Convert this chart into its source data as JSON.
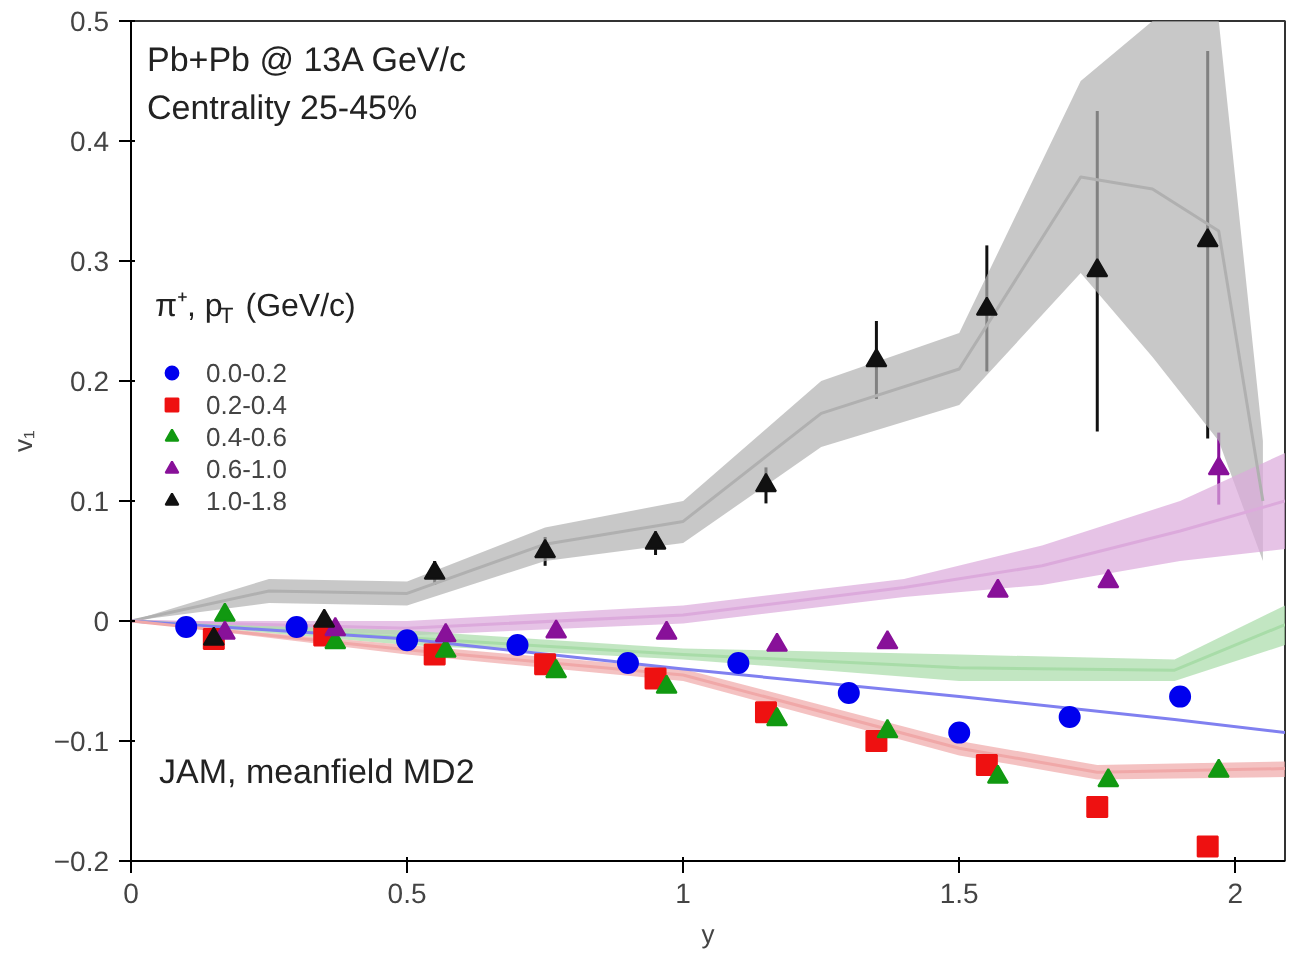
{
  "chart_data": {
    "type": "scatter",
    "xlabel": "y",
    "ylabel": "v₁",
    "legend_title": "π⁺, p$_{T}$ (GeV/c)",
    "annotations": [
      "Pb+Pb @ 13A GeV/c",
      "Centrality 25-45%",
      "JAM, meanfield MD2"
    ],
    "xlim": [
      0,
      2.09
    ],
    "ylim": [
      -0.2,
      0.5
    ],
    "xticks": [
      0,
      0.5,
      1,
      1.5,
      2
    ],
    "yticks": [
      -0.2,
      -0.1,
      0,
      0.1,
      0.2,
      0.3,
      0.4,
      0.5
    ],
    "grid": false,
    "legend": "top left",
    "series": [
      {
        "type": "line",
        "color": "#b0b0b0",
        "x": [
          0,
          0.25,
          0.5,
          0.75,
          1.0,
          1.25,
          1.5,
          1.72,
          1.85,
          1.97,
          2.05
        ],
        "values": [
          0,
          0.025,
          0.023,
          0.064,
          0.083,
          0.173,
          0.21,
          0.37,
          0.36,
          0.325,
          0.1
        ],
        "lower": [
          0,
          0.015,
          0.013,
          0.05,
          0.065,
          0.145,
          0.18,
          0.29,
          0.22,
          0.15,
          0.05
        ],
        "upper": [
          0,
          0.035,
          0.033,
          0.078,
          0.1,
          0.2,
          0.24,
          0.45,
          0.5,
          0.5,
          0.15
        ]
      },
      {
        "type": "line",
        "color": "#dcaadc",
        "x": [
          0,
          0.5,
          1.0,
          1.4,
          1.65,
          1.9,
          2.09
        ],
        "values": [
          0,
          -0.006,
          0.005,
          0.028,
          0.046,
          0.075,
          0.1
        ],
        "lower": [
          0,
          -0.012,
          -0.002,
          0.02,
          0.03,
          0.05,
          0.06
        ],
        "upper": [
          0,
          0.0,
          0.013,
          0.035,
          0.063,
          0.1,
          0.14
        ]
      },
      {
        "type": "line",
        "color": "#a8dca8",
        "x": [
          0,
          0.5,
          1.0,
          1.5,
          1.89,
          2.09
        ],
        "values": [
          0,
          -0.014,
          -0.028,
          -0.039,
          -0.041,
          -0.003
        ],
        "lower": [
          0,
          -0.02,
          -0.032,
          -0.05,
          -0.05,
          -0.02
        ],
        "upper": [
          0,
          -0.008,
          -0.023,
          -0.028,
          -0.032,
          0.013
        ]
      },
      {
        "type": "line",
        "color": "#8080f0",
        "x": [
          0,
          0.5,
          1.0,
          1.5,
          1.89,
          2.09
        ],
        "values": [
          0,
          -0.015,
          -0.04,
          -0.063,
          -0.082,
          -0.093
        ]
      },
      {
        "type": "line",
        "color": "#f0a8a8",
        "x": [
          0,
          0.5,
          1.0,
          1.5,
          1.75,
          2.09
        ],
        "values": [
          0,
          -0.024,
          -0.045,
          -0.106,
          -0.126,
          -0.123
        ],
        "lower": [
          0,
          -0.028,
          -0.05,
          -0.112,
          -0.132,
          -0.13
        ],
        "upper": [
          0,
          -0.02,
          -0.04,
          -0.1,
          -0.12,
          -0.117
        ]
      },
      {
        "name": "0.0-0.2",
        "color": "#0000ee",
        "marker": "circle",
        "x": [
          0.1,
          0.3,
          0.5,
          0.7,
          0.9,
          1.1,
          1.3,
          1.5,
          1.7,
          1.9
        ],
        "values": [
          -0.005,
          -0.005,
          -0.016,
          -0.02,
          -0.035,
          -0.035,
          -0.06,
          -0.093,
          -0.08,
          -0.063
        ]
      },
      {
        "name": "0.2-0.4",
        "color": "#ee1111",
        "marker": "square",
        "x": [
          0.15,
          0.35,
          0.55,
          0.75,
          0.95,
          1.15,
          1.35,
          1.55,
          1.75,
          1.95
        ],
        "values": [
          -0.015,
          -0.012,
          -0.028,
          -0.036,
          -0.048,
          -0.076,
          -0.1,
          -0.12,
          -0.155,
          -0.188
        ]
      },
      {
        "name": "0.4-0.6",
        "color": "#119911",
        "marker": "triangle",
        "x": [
          0.17,
          0.37,
          0.57,
          0.77,
          0.97,
          1.17,
          1.37,
          1.57,
          1.77,
          1.97
        ],
        "values": [
          0.005,
          -0.018,
          -0.025,
          -0.042,
          -0.055,
          -0.082,
          -0.092,
          -0.13,
          -0.133,
          -0.125
        ]
      },
      {
        "name": "0.6-1.0",
        "color": "#881199",
        "marker": "triangle",
        "x": [
          0.17,
          0.37,
          0.57,
          0.77,
          0.97,
          1.17,
          1.37,
          1.57,
          1.77,
          1.97
        ],
        "values": [
          -0.01,
          -0.007,
          -0.012,
          -0.009,
          -0.01,
          -0.02,
          -0.018,
          0.025,
          0.033,
          0.127
        ],
        "errors": [
          null,
          null,
          null,
          null,
          null,
          null,
          null,
          null,
          null,
          0.03
        ]
      },
      {
        "name": "1.0-1.8",
        "color": "#111111",
        "marker": "triangle",
        "x": [
          0.15,
          0.35,
          0.55,
          0.75,
          0.95,
          1.15,
          1.35,
          1.55,
          1.75,
          1.95
        ],
        "values": [
          -0.015,
          0.0,
          0.04,
          0.058,
          0.065,
          0.113,
          0.217,
          0.26,
          0.292,
          0.317
        ],
        "errors": [
          null,
          null,
          0.01,
          0.012,
          0.01,
          0.015,
          [
            0.185,
            0.25
          ],
          [
            0.208,
            0.313
          ],
          [
            0.158,
            0.425
          ],
          [
            0.152,
            0.475
          ]
        ]
      }
    ]
  }
}
